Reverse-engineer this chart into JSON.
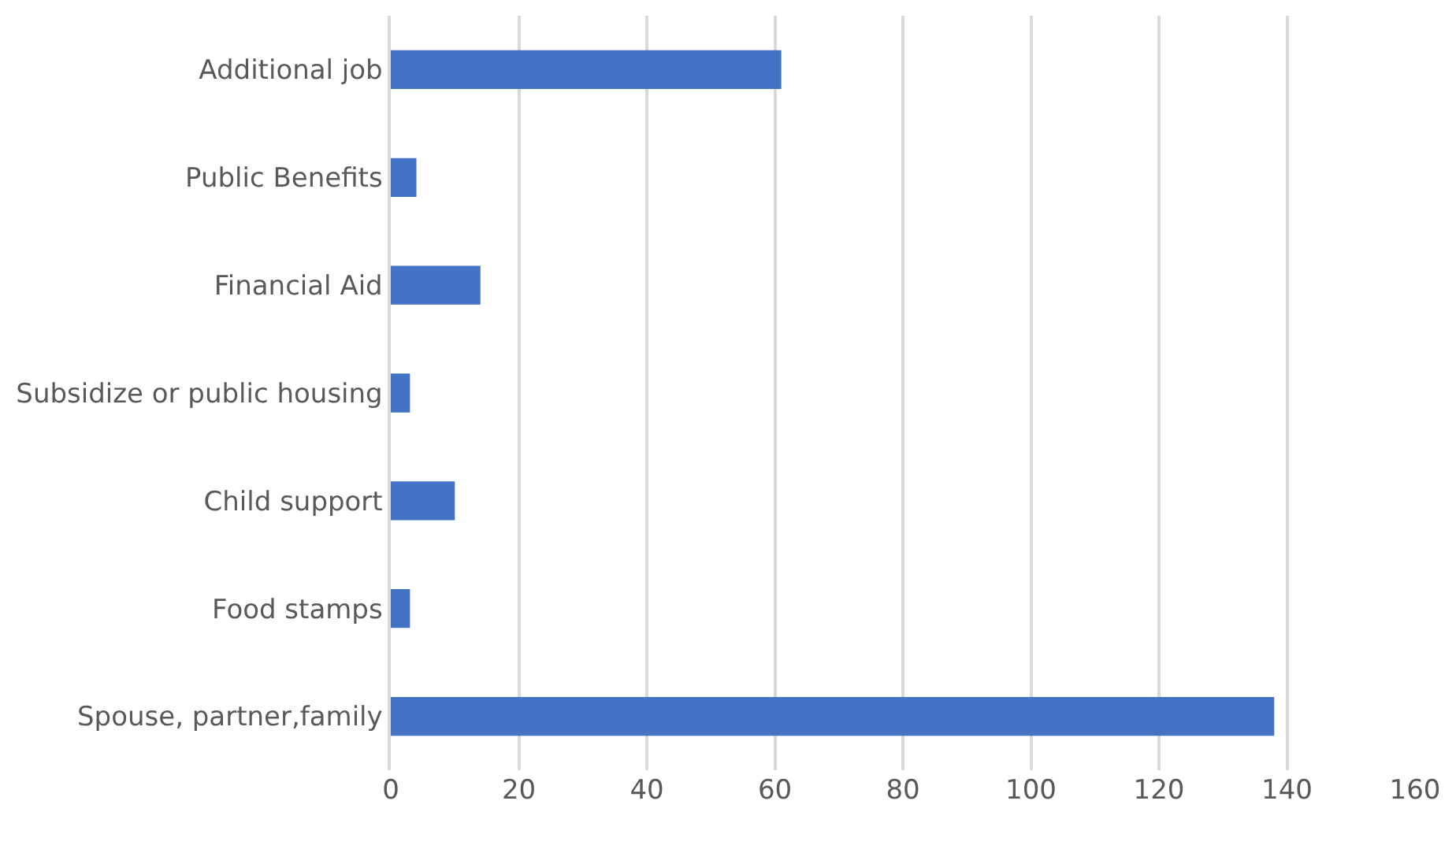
{
  "chart_data": {
    "type": "bar",
    "orientation": "horizontal",
    "categories": [
      "Additional job",
      "Public Benefits",
      "Financial Aid",
      "Subsidize or public housing",
      "Child support",
      "Food stamps",
      "Spouse, partner,family"
    ],
    "values": [
      61,
      4,
      14,
      3,
      10,
      3,
      138
    ],
    "color": "#4472c4",
    "xlim": [
      0,
      160
    ],
    "xticks": [
      0,
      20,
      40,
      60,
      80,
      100,
      120,
      140,
      160
    ],
    "grid": "x"
  }
}
